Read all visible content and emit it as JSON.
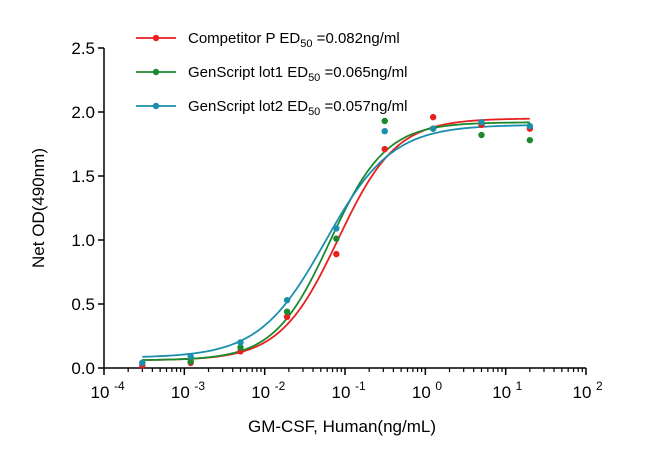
{
  "chart_data": {
    "type": "scatter",
    "title": "",
    "xlabel": "GM-CSF, Human(ng/mL)",
    "ylabel": "Net OD(490nm)",
    "xscale": "log",
    "xlim": [
      0.0001,
      100
    ],
    "ylim": [
      0,
      2.5
    ],
    "x_ticks": [
      {
        "value": 0.0001,
        "base": "10",
        "exp": "-4"
      },
      {
        "value": 0.001,
        "base": "10",
        "exp": "-3"
      },
      {
        "value": 0.01,
        "base": "10",
        "exp": "-2"
      },
      {
        "value": 0.1,
        "base": "10",
        "exp": "-1"
      },
      {
        "value": 1,
        "base": "10",
        "exp": "0"
      },
      {
        "value": 10,
        "base": "10",
        "exp": "1"
      },
      {
        "value": 100,
        "base": "10",
        "exp": "2"
      }
    ],
    "y_ticks": [
      {
        "value": 0,
        "label": "0.0"
      },
      {
        "value": 0.5,
        "label": "0.5"
      },
      {
        "value": 1.0,
        "label": "1.0"
      },
      {
        "value": 1.5,
        "label": "1.5"
      },
      {
        "value": 2.0,
        "label": "2.0"
      },
      {
        "value": 2.5,
        "label": "2.5"
      }
    ],
    "grid": false,
    "legend_position": "top-center",
    "curve_model": "four-parameter logistic fit",
    "series": [
      {
        "name": "Competitor P",
        "ed_prefix": "ED",
        "ed_sub": "50",
        "ed_value": " =0.082ng/ml",
        "color": "#e8211f",
        "fit": {
          "bottom": 0.06,
          "top": 1.95,
          "ec50": 0.082,
          "hill": 1.2
        },
        "points": [
          {
            "x": 0.0003,
            "y": 0.02
          },
          {
            "x": 0.0012,
            "y": 0.04
          },
          {
            "x": 0.005,
            "y": 0.13
          },
          {
            "x": 0.019,
            "y": 0.4
          },
          {
            "x": 0.078,
            "y": 0.89
          },
          {
            "x": 0.3125,
            "y": 1.71
          },
          {
            "x": 1.25,
            "y": 1.96
          },
          {
            "x": 5,
            "y": 1.9
          },
          {
            "x": 20,
            "y": 1.87
          }
        ]
      },
      {
        "name": "GenScript lot1",
        "ed_prefix": "ED",
        "ed_sub": "50",
        "ed_value": " =0.065ng/ml",
        "color": "#1b8a2e",
        "fit": {
          "bottom": 0.06,
          "top": 1.92,
          "ec50": 0.065,
          "hill": 1.25
        },
        "points": [
          {
            "x": 0.0003,
            "y": 0.04
          },
          {
            "x": 0.0012,
            "y": 0.05
          },
          {
            "x": 0.005,
            "y": 0.16
          },
          {
            "x": 0.019,
            "y": 0.44
          },
          {
            "x": 0.078,
            "y": 1.01
          },
          {
            "x": 0.3125,
            "y": 1.93
          },
          {
            "x": 1.25,
            "y": 1.87
          },
          {
            "x": 5,
            "y": 1.82
          },
          {
            "x": 20,
            "y": 1.78
          }
        ]
      },
      {
        "name": "GenScript lot2",
        "ed_prefix": "ED",
        "ed_sub": "50",
        "ed_value": " =0.057ng/ml",
        "color": "#1a8fae",
        "fit": {
          "bottom": 0.08,
          "top": 1.9,
          "ec50": 0.057,
          "hill": 1.05
        },
        "points": [
          {
            "x": 0.0003,
            "y": 0.04
          },
          {
            "x": 0.0012,
            "y": 0.09
          },
          {
            "x": 0.005,
            "y": 0.2
          },
          {
            "x": 0.019,
            "y": 0.53
          },
          {
            "x": 0.078,
            "y": 1.09
          },
          {
            "x": 0.3125,
            "y": 1.85
          },
          {
            "x": 1.25,
            "y": 1.87
          },
          {
            "x": 5,
            "y": 1.92
          },
          {
            "x": 20,
            "y": 1.89
          }
        ]
      }
    ]
  }
}
